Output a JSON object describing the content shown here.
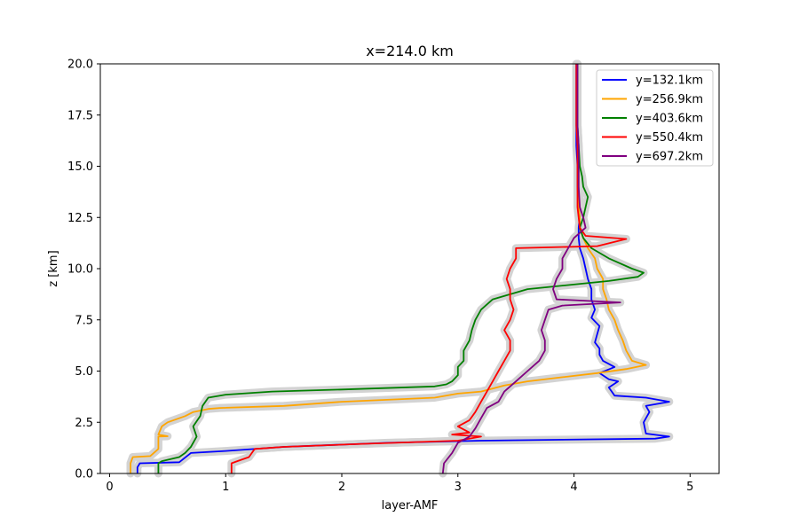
{
  "chart_data": {
    "type": "line",
    "title": "x=214.0 km",
    "xlabel": "layer-AMF",
    "ylabel": "z [km]",
    "xlim": [
      -0.08,
      5.25
    ],
    "ylim": [
      0,
      20
    ],
    "xticks": [
      0,
      1,
      2,
      3,
      4,
      5
    ],
    "yticks": [
      0.0,
      2.5,
      5.0,
      7.5,
      10.0,
      12.5,
      15.0,
      17.5,
      20.0
    ],
    "grid": false,
    "legend_position": "top-right",
    "band_color": "#d3d3d3",
    "series": [
      {
        "name": "y=132.1km",
        "color": "#0000ff",
        "points": [
          [
            0.24,
            0.0
          ],
          [
            0.24,
            0.3
          ],
          [
            0.26,
            0.5
          ],
          [
            0.6,
            0.55
          ],
          [
            0.7,
            1.0
          ],
          [
            1.0,
            1.1
          ],
          [
            1.5,
            1.3
          ],
          [
            2.4,
            1.5
          ],
          [
            3.2,
            1.6
          ],
          [
            4.7,
            1.7
          ],
          [
            4.82,
            1.8
          ],
          [
            4.62,
            1.95
          ],
          [
            4.6,
            2.5
          ],
          [
            4.65,
            3.0
          ],
          [
            4.62,
            3.3
          ],
          [
            4.82,
            3.5
          ],
          [
            4.62,
            3.7
          ],
          [
            4.35,
            3.8
          ],
          [
            4.3,
            4.2
          ],
          [
            4.38,
            4.5
          ],
          [
            4.3,
            4.6
          ],
          [
            4.22,
            4.9
          ],
          [
            4.35,
            5.2
          ],
          [
            4.25,
            5.5
          ],
          [
            4.22,
            5.8
          ],
          [
            4.22,
            6.1
          ],
          [
            4.18,
            6.4
          ],
          [
            4.2,
            6.8
          ],
          [
            4.22,
            7.2
          ],
          [
            4.15,
            7.6
          ],
          [
            4.18,
            8.0
          ],
          [
            4.15,
            8.5
          ],
          [
            4.15,
            9.0
          ],
          [
            4.12,
            9.5
          ],
          [
            4.1,
            10.0
          ],
          [
            4.08,
            10.5
          ],
          [
            4.05,
            11.0
          ],
          [
            4.04,
            11.5
          ],
          [
            4.04,
            12.0
          ],
          [
            4.05,
            12.5
          ],
          [
            4.04,
            13.0
          ],
          [
            4.03,
            14.0
          ],
          [
            4.03,
            15.0
          ],
          [
            4.02,
            16.0
          ],
          [
            4.02,
            17.0
          ],
          [
            4.02,
            18.0
          ],
          [
            4.02,
            19.0
          ],
          [
            4.02,
            20.0
          ]
        ]
      },
      {
        "name": "y=256.9km",
        "color": "#ffa500",
        "points": [
          [
            0.18,
            0.0
          ],
          [
            0.18,
            0.5
          ],
          [
            0.2,
            0.8
          ],
          [
            0.35,
            0.85
          ],
          [
            0.42,
            1.2
          ],
          [
            0.42,
            1.8
          ],
          [
            0.5,
            1.82
          ],
          [
            0.42,
            1.9
          ],
          [
            0.45,
            2.3
          ],
          [
            0.5,
            2.5
          ],
          [
            0.65,
            2.8
          ],
          [
            0.72,
            3.0
          ],
          [
            0.85,
            3.15
          ],
          [
            0.95,
            3.2
          ],
          [
            1.5,
            3.3
          ],
          [
            2.0,
            3.5
          ],
          [
            2.8,
            3.7
          ],
          [
            3.0,
            3.9
          ],
          [
            3.2,
            4.0
          ],
          [
            3.4,
            4.3
          ],
          [
            3.6,
            4.5
          ],
          [
            3.9,
            4.7
          ],
          [
            4.2,
            4.9
          ],
          [
            4.45,
            5.1
          ],
          [
            4.62,
            5.3
          ],
          [
            4.5,
            5.5
          ],
          [
            4.45,
            6.0
          ],
          [
            4.42,
            6.5
          ],
          [
            4.38,
            7.0
          ],
          [
            4.35,
            7.5
          ],
          [
            4.3,
            8.0
          ],
          [
            4.28,
            8.5
          ],
          [
            4.25,
            9.0
          ],
          [
            4.25,
            9.5
          ],
          [
            4.2,
            10.0
          ],
          [
            4.18,
            10.5
          ],
          [
            4.12,
            11.0
          ],
          [
            4.08,
            11.5
          ],
          [
            4.05,
            12.0
          ],
          [
            4.05,
            12.5
          ],
          [
            4.04,
            13.0
          ],
          [
            4.04,
            14.0
          ],
          [
            4.04,
            15.0
          ],
          [
            4.03,
            16.0
          ],
          [
            4.03,
            17.0
          ],
          [
            4.03,
            18.0
          ],
          [
            4.03,
            19.0
          ],
          [
            4.03,
            20.0
          ]
        ]
      },
      {
        "name": "y=403.6km",
        "color": "#008000",
        "points": [
          [
            0.42,
            0.0
          ],
          [
            0.42,
            0.5
          ],
          [
            0.45,
            0.6
          ],
          [
            0.6,
            0.8
          ],
          [
            0.65,
            1.0
          ],
          [
            0.7,
            1.3
          ],
          [
            0.75,
            1.8
          ],
          [
            0.72,
            2.3
          ],
          [
            0.78,
            2.8
          ],
          [
            0.8,
            3.3
          ],
          [
            0.85,
            3.7
          ],
          [
            1.0,
            3.85
          ],
          [
            1.4,
            4.0
          ],
          [
            2.0,
            4.1
          ],
          [
            2.8,
            4.25
          ],
          [
            2.9,
            4.35
          ],
          [
            2.95,
            4.5
          ],
          [
            3.0,
            4.8
          ],
          [
            3.0,
            5.2
          ],
          [
            3.05,
            5.5
          ],
          [
            3.05,
            6.0
          ],
          [
            3.1,
            6.5
          ],
          [
            3.12,
            7.0
          ],
          [
            3.15,
            7.5
          ],
          [
            3.2,
            8.0
          ],
          [
            3.3,
            8.5
          ],
          [
            3.6,
            9.0
          ],
          [
            3.95,
            9.2
          ],
          [
            4.3,
            9.4
          ],
          [
            4.55,
            9.6
          ],
          [
            4.6,
            9.8
          ],
          [
            4.5,
            10.0
          ],
          [
            4.3,
            10.5
          ],
          [
            4.15,
            11.0
          ],
          [
            4.08,
            11.5
          ],
          [
            4.05,
            12.0
          ],
          [
            4.08,
            12.5
          ],
          [
            4.1,
            13.0
          ],
          [
            4.12,
            13.5
          ],
          [
            4.08,
            14.0
          ],
          [
            4.07,
            14.5
          ],
          [
            4.05,
            15.0
          ],
          [
            4.04,
            16.0
          ],
          [
            4.03,
            17.0
          ],
          [
            4.03,
            18.0
          ],
          [
            4.03,
            19.0
          ],
          [
            4.03,
            20.0
          ]
        ]
      },
      {
        "name": "y=550.4km",
        "color": "#ff0000",
        "points": [
          [
            1.05,
            0.0
          ],
          [
            1.05,
            0.5
          ],
          [
            1.1,
            0.6
          ],
          [
            1.2,
            0.8
          ],
          [
            1.25,
            1.2
          ],
          [
            1.5,
            1.3
          ],
          [
            2.2,
            1.45
          ],
          [
            3.0,
            1.6
          ],
          [
            3.2,
            1.8
          ],
          [
            2.95,
            1.9
          ],
          [
            3.1,
            2.0
          ],
          [
            3.0,
            2.3
          ],
          [
            3.1,
            2.6
          ],
          [
            3.15,
            3.0
          ],
          [
            3.2,
            3.5
          ],
          [
            3.25,
            4.0
          ],
          [
            3.3,
            4.5
          ],
          [
            3.35,
            5.0
          ],
          [
            3.4,
            5.5
          ],
          [
            3.45,
            6.0
          ],
          [
            3.45,
            6.5
          ],
          [
            3.4,
            7.0
          ],
          [
            3.45,
            7.5
          ],
          [
            3.48,
            8.0
          ],
          [
            3.45,
            8.5
          ],
          [
            3.45,
            9.0
          ],
          [
            3.42,
            9.5
          ],
          [
            3.45,
            10.0
          ],
          [
            3.5,
            10.5
          ],
          [
            3.5,
            11.0
          ],
          [
            4.2,
            11.1
          ],
          [
            4.45,
            11.45
          ],
          [
            4.1,
            11.6
          ],
          [
            4.05,
            12.0
          ],
          [
            4.04,
            12.5
          ],
          [
            4.03,
            13.0
          ],
          [
            4.03,
            14.0
          ],
          [
            4.03,
            15.0
          ],
          [
            4.03,
            16.0
          ],
          [
            4.02,
            17.0
          ],
          [
            4.02,
            18.0
          ],
          [
            4.02,
            19.0
          ],
          [
            4.02,
            20.0
          ]
        ]
      },
      {
        "name": "y=697.2km",
        "color": "#800080",
        "points": [
          [
            2.87,
            0.0
          ],
          [
            2.88,
            0.5
          ],
          [
            2.95,
            1.0
          ],
          [
            3.0,
            1.5
          ],
          [
            3.1,
            1.8
          ],
          [
            3.15,
            2.2
          ],
          [
            3.2,
            2.7
          ],
          [
            3.25,
            3.2
          ],
          [
            3.35,
            3.5
          ],
          [
            3.4,
            4.0
          ],
          [
            3.5,
            4.5
          ],
          [
            3.6,
            5.0
          ],
          [
            3.7,
            5.5
          ],
          [
            3.75,
            6.0
          ],
          [
            3.75,
            6.5
          ],
          [
            3.72,
            7.0
          ],
          [
            3.75,
            7.5
          ],
          [
            3.78,
            8.0
          ],
          [
            3.9,
            8.2
          ],
          [
            4.4,
            8.35
          ],
          [
            3.85,
            8.5
          ],
          [
            3.82,
            9.0
          ],
          [
            3.85,
            9.5
          ],
          [
            3.9,
            10.0
          ],
          [
            3.9,
            10.5
          ],
          [
            3.95,
            11.0
          ],
          [
            4.0,
            11.5
          ],
          [
            4.1,
            12.0
          ],
          [
            4.08,
            12.5
          ],
          [
            4.05,
            13.0
          ],
          [
            4.04,
            14.0
          ],
          [
            4.04,
            15.0
          ],
          [
            4.04,
            16.0
          ],
          [
            4.03,
            17.0
          ],
          [
            4.03,
            18.0
          ],
          [
            4.03,
            19.0
          ],
          [
            4.03,
            20.0
          ]
        ]
      }
    ]
  }
}
